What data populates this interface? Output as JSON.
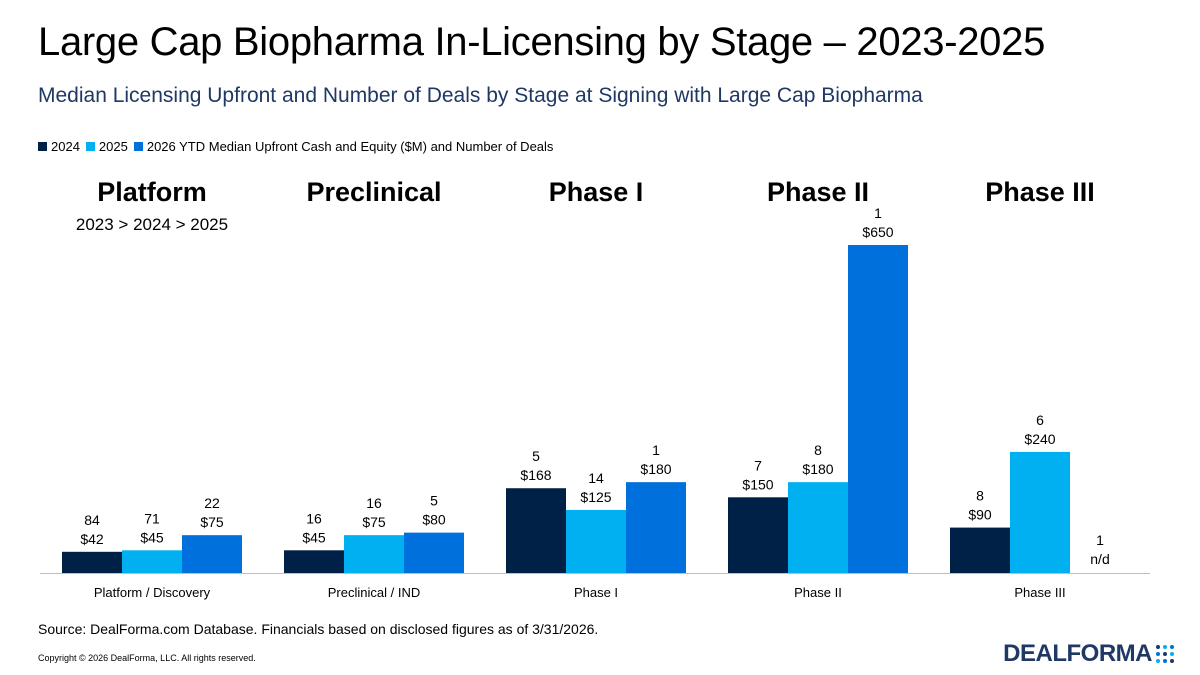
{
  "header": {
    "title": "Large Cap Biopharma In-Licensing by Stage – 2023-2025",
    "subtitle": "Median Licensing Upfront and Number of Deals by Stage at Signing with Large Cap Biopharma"
  },
  "legend": {
    "items": [
      "2024",
      "2025",
      "2026 YTD Median Upfront Cash and Equity ($M) and Number of Deals"
    ]
  },
  "stage_titles": [
    {
      "title": "Platform",
      "note": "2023 > 2024 > 2025"
    },
    {
      "title": "Preclinical",
      "note": ""
    },
    {
      "title": "Phase I",
      "note": ""
    },
    {
      "title": "Phase II",
      "note": ""
    },
    {
      "title": "Phase III",
      "note": ""
    }
  ],
  "chart_data": {
    "type": "bar",
    "categories": [
      "Platform / Discovery",
      "Preclinical / IND",
      "Phase I",
      "Phase II",
      "Phase III"
    ],
    "series": [
      {
        "name": "2024",
        "color": "#002147",
        "values": [
          42,
          45,
          168,
          150,
          90
        ],
        "deals": [
          84,
          16,
          5,
          7,
          8
        ],
        "value_labels": [
          "$42",
          "$45",
          "$168",
          "$150",
          "$90"
        ]
      },
      {
        "name": "2025",
        "color": "#00b0f0",
        "values": [
          45,
          75,
          125,
          180,
          240
        ],
        "deals": [
          71,
          16,
          14,
          8,
          6
        ],
        "value_labels": [
          "$45",
          "$75",
          "$125",
          "$180",
          "$240"
        ]
      },
      {
        "name": "2026 YTD Median Upfront Cash and Equity ($M) and Number of Deals",
        "color": "#0070dd",
        "values": [
          75,
          80,
          180,
          650,
          null
        ],
        "deals": [
          22,
          5,
          1,
          1,
          1
        ],
        "value_labels": [
          "$75",
          "$80",
          "$180",
          "$650",
          "n/d"
        ]
      }
    ],
    "ylim": [
      0,
      650
    ],
    "grid": false,
    "legend_position": "top-left",
    "xlabel": "",
    "ylabel": ""
  },
  "footer": {
    "source": "Source: DealForma.com Database. Financials based on disclosed figures as of 3/31/2026.",
    "copyright": "Copyright © 2026 DealForma, LLC. All rights reserved.",
    "logo_text": "DEALFORMA"
  }
}
